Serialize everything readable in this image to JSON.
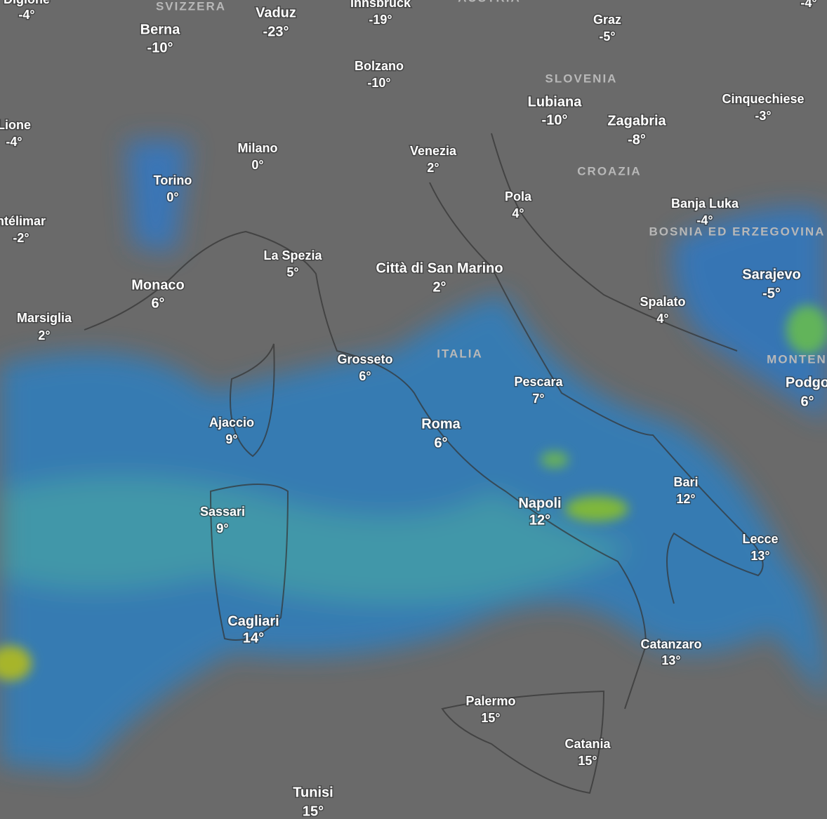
{
  "countries": [
    {
      "label": "SVIZZERA"
    },
    {
      "label": "AUSTRIA"
    },
    {
      "label": "SLOVENIA"
    },
    {
      "label": "CROAZIA"
    },
    {
      "label": "BOSNIA ED ERZEGOVINA"
    },
    {
      "label": "ITALIA"
    },
    {
      "label": "MONTEN"
    }
  ],
  "cities": [
    {
      "name": "Digione",
      "temp": "-4°"
    },
    {
      "temp": "-4°"
    },
    {
      "name": "Berna",
      "temp": "-10°"
    },
    {
      "name": "Vaduz",
      "temp": "-23°"
    },
    {
      "name": "Innsbruck",
      "temp": "-19°"
    },
    {
      "name": "Graz",
      "temp": "-5°"
    },
    {
      "name": "Bolzano",
      "temp": "-10°"
    },
    {
      "name": "Lione",
      "temp": "-4°"
    },
    {
      "name": "Milano",
      "temp": "0°"
    },
    {
      "name": "Venezia",
      "temp": "2°"
    },
    {
      "name": "Lubiana",
      "temp": "-10°"
    },
    {
      "name": "Zagabria",
      "temp": "-8°"
    },
    {
      "name": "Cinquechiese",
      "temp": "-3°"
    },
    {
      "name": "Torino",
      "temp": "0°"
    },
    {
      "name": "Pola",
      "temp": "4°"
    },
    {
      "name": "Banja Luka",
      "temp": "-4°"
    },
    {
      "name": "ntélimar",
      "temp": "-2°"
    },
    {
      "name": "La Spezia",
      "temp": "5°"
    },
    {
      "name": "Città di San Marino",
      "temp": "2°"
    },
    {
      "name": "Monaco",
      "temp": "6°"
    },
    {
      "name": "Marsiglia",
      "temp": "2°"
    },
    {
      "name": "Spalato",
      "temp": "4°"
    },
    {
      "name": "Sarajevo",
      "temp": "-5°"
    },
    {
      "name": "Grosseto",
      "temp": "6°"
    },
    {
      "name": "Pescara",
      "temp": "7°"
    },
    {
      "name": "Podgo",
      "temp": "6°"
    },
    {
      "name": "Ajaccio",
      "temp": "9°"
    },
    {
      "name": "Roma",
      "temp": "6°"
    },
    {
      "name": "Bari",
      "temp": "12°"
    },
    {
      "name": "Napoli",
      "temp": "12°"
    },
    {
      "name": "Sassari",
      "temp": "9°"
    },
    {
      "name": "Lecce",
      "temp": "13°"
    },
    {
      "name": "Cagliari",
      "temp": "14°"
    },
    {
      "name": "Catanzaro",
      "temp": "13°"
    },
    {
      "name": "Palermo",
      "temp": "15°"
    },
    {
      "name": "Catania",
      "temp": "15°"
    },
    {
      "name": "Tunisi",
      "temp": "15°"
    }
  ]
}
